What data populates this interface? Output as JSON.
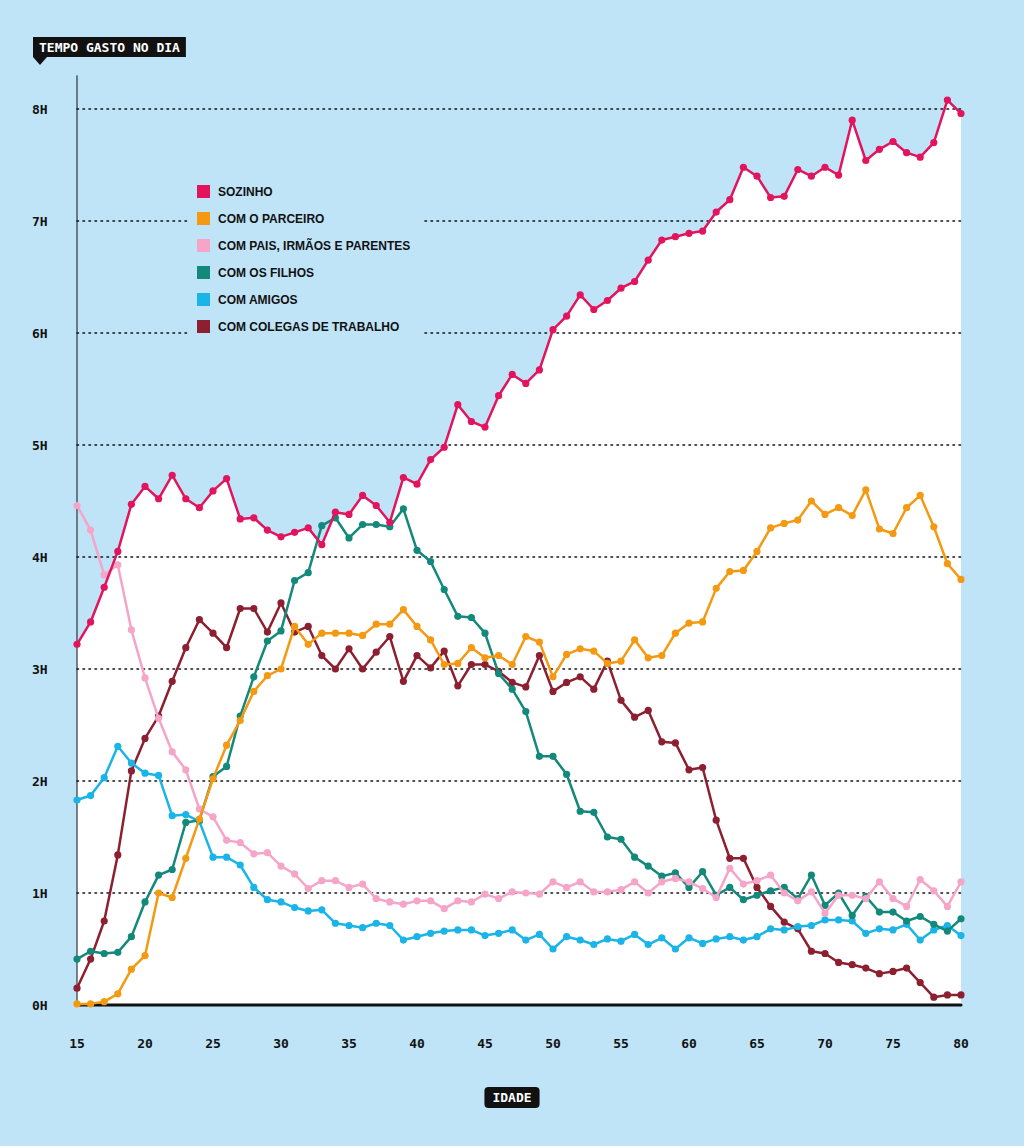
{
  "chart_data": {
    "type": "line",
    "title": "TEMPO GASTO NO DIA",
    "xlabel": "IDADE",
    "x": [
      15,
      16,
      17,
      18,
      19,
      20,
      21,
      22,
      23,
      24,
      25,
      26,
      27,
      28,
      29,
      30,
      31,
      32,
      33,
      34,
      35,
      36,
      37,
      38,
      39,
      40,
      41,
      42,
      43,
      44,
      45,
      46,
      47,
      48,
      49,
      50,
      51,
      52,
      53,
      54,
      55,
      56,
      57,
      58,
      59,
      60,
      61,
      62,
      63,
      64,
      65,
      66,
      67,
      68,
      69,
      70,
      71,
      72,
      73,
      74,
      75,
      76,
      77,
      78,
      79,
      80
    ],
    "xlim": [
      15,
      80
    ],
    "xticks": [
      15,
      20,
      25,
      30,
      35,
      40,
      45,
      50,
      55,
      60,
      65,
      70,
      75,
      80
    ],
    "ylim": [
      0,
      8.3
    ],
    "yticks": [
      {
        "value": 0,
        "label": "0H"
      },
      {
        "value": 1,
        "label": "1H"
      },
      {
        "value": 2,
        "label": "2H"
      },
      {
        "value": 3,
        "label": "3H"
      },
      {
        "value": 4,
        "label": "4H"
      },
      {
        "value": 5,
        "label": "5H"
      },
      {
        "value": 6,
        "label": "6H"
      },
      {
        "value": 7,
        "label": "7H"
      },
      {
        "value": 8,
        "label": "8H"
      }
    ],
    "grid": true,
    "legend": "top-left",
    "marker": "circle",
    "series": [
      {
        "name": "SOZINHO",
        "color": "#e2145d",
        "values": [
          3.22,
          3.42,
          3.73,
          4.05,
          4.47,
          4.63,
          4.52,
          4.73,
          4.52,
          4.44,
          4.59,
          4.7,
          4.34,
          4.35,
          4.24,
          4.18,
          4.22,
          4.26,
          4.11,
          4.4,
          4.38,
          4.55,
          4.46,
          4.31,
          4.71,
          4.65,
          4.87,
          4.98,
          5.36,
          5.21,
          5.16,
          5.44,
          5.63,
          5.55,
          5.67,
          6.03,
          6.15,
          6.34,
          6.21,
          6.29,
          6.4,
          6.46,
          6.65,
          6.83,
          6.86,
          6.89,
          6.91,
          7.08,
          7.19,
          7.48,
          7.4,
          7.21,
          7.22,
          7.46,
          7.4,
          7.48,
          7.41,
          7.9,
          7.54,
          7.64,
          7.71,
          7.61,
          7.57,
          7.7,
          8.08,
          7.96
        ]
      },
      {
        "name": "COM O PARCEIRO",
        "color": "#f39a12",
        "values": [
          0.01,
          0.01,
          0.03,
          0.1,
          0.32,
          0.44,
          1.0,
          0.96,
          1.31,
          1.66,
          2.02,
          2.32,
          2.54,
          2.8,
          2.94,
          3.0,
          3.38,
          3.22,
          3.32,
          3.32,
          3.32,
          3.3,
          3.4,
          3.4,
          3.53,
          3.38,
          3.26,
          3.04,
          3.05,
          3.19,
          3.1,
          3.12,
          3.04,
          3.29,
          3.24,
          2.93,
          3.13,
          3.18,
          3.16,
          3.05,
          3.07,
          3.26,
          3.1,
          3.12,
          3.32,
          3.41,
          3.42,
          3.72,
          3.87,
          3.88,
          4.05,
          4.26,
          4.3,
          4.33,
          4.5,
          4.38,
          4.44,
          4.37,
          4.6,
          4.25,
          4.21,
          4.44,
          4.55,
          4.27,
          3.94,
          3.8
        ]
      },
      {
        "name": "COM PAIS, IRMÃOS E PARENTES",
        "color": "#f4a5c8",
        "values": [
          4.46,
          4.24,
          3.84,
          3.93,
          3.35,
          2.92,
          2.56,
          2.26,
          2.1,
          1.75,
          1.68,
          1.47,
          1.45,
          1.35,
          1.36,
          1.24,
          1.17,
          1.04,
          1.11,
          1.11,
          1.05,
          1.08,
          0.95,
          0.92,
          0.9,
          0.93,
          0.93,
          0.86,
          0.93,
          0.92,
          0.99,
          0.95,
          1.01,
          1.0,
          0.99,
          1.1,
          1.05,
          1.1,
          1.01,
          1.01,
          1.03,
          1.1,
          1.0,
          1.1,
          1.13,
          1.1,
          1.04,
          0.96,
          1.22,
          1.08,
          1.11,
          1.16,
          1.0,
          0.93,
          1.01,
          0.82,
          0.98,
          0.98,
          0.95,
          1.1,
          0.95,
          0.88,
          1.12,
          1.02,
          0.88,
          1.1
        ]
      },
      {
        "name": "COM OS FILHOS",
        "color": "#12897b",
        "values": [
          0.41,
          0.48,
          0.46,
          0.47,
          0.61,
          0.92,
          1.16,
          1.21,
          1.63,
          1.65,
          2.04,
          2.13,
          2.58,
          2.93,
          3.25,
          3.34,
          3.79,
          3.86,
          4.28,
          4.35,
          4.17,
          4.29,
          4.29,
          4.27,
          4.43,
          4.06,
          3.96,
          3.71,
          3.47,
          3.46,
          3.32,
          2.96,
          2.82,
          2.62,
          2.22,
          2.22,
          2.06,
          1.73,
          1.72,
          1.5,
          1.48,
          1.32,
          1.24,
          1.15,
          1.18,
          1.05,
          1.19,
          0.98,
          1.05,
          0.94,
          0.98,
          1.02,
          1.05,
          0.95,
          1.16,
          0.89,
          1.0,
          0.8,
          0.97,
          0.83,
          0.83,
          0.75,
          0.79,
          0.72,
          0.66,
          0.77
        ]
      },
      {
        "name": "COM AMIGOS",
        "color": "#1ab4e8",
        "values": [
          1.83,
          1.87,
          2.03,
          2.31,
          2.16,
          2.07,
          2.05,
          1.69,
          1.7,
          1.64,
          1.32,
          1.32,
          1.25,
          1.05,
          0.94,
          0.92,
          0.87,
          0.84,
          0.85,
          0.73,
          0.71,
          0.69,
          0.73,
          0.71,
          0.58,
          0.61,
          0.64,
          0.66,
          0.67,
          0.67,
          0.62,
          0.64,
          0.67,
          0.58,
          0.63,
          0.5,
          0.61,
          0.58,
          0.54,
          0.59,
          0.57,
          0.63,
          0.54,
          0.6,
          0.5,
          0.6,
          0.55,
          0.59,
          0.61,
          0.58,
          0.61,
          0.68,
          0.67,
          0.7,
          0.71,
          0.76,
          0.76,
          0.75,
          0.64,
          0.68,
          0.67,
          0.72,
          0.58,
          0.67,
          0.71,
          0.62
        ]
      },
      {
        "name": "COM COLEGAS DE TRABALHO",
        "color": "#8c1f30",
        "values": [
          0.15,
          0.41,
          0.75,
          1.34,
          2.09,
          2.38,
          2.58,
          2.89,
          3.19,
          3.44,
          3.32,
          3.19,
          3.54,
          3.54,
          3.33,
          3.59,
          3.33,
          3.38,
          3.12,
          3.0,
          3.18,
          3.0,
          3.15,
          3.29,
          2.89,
          3.12,
          3.01,
          3.16,
          2.85,
          3.04,
          3.04,
          2.98,
          2.88,
          2.84,
          3.12,
          2.8,
          2.88,
          2.93,
          2.82,
          3.07,
          2.72,
          2.57,
          2.63,
          2.35,
          2.34,
          2.1,
          2.12,
          1.65,
          1.31,
          1.31,
          1.05,
          0.88,
          0.74,
          0.68,
          0.48,
          0.46,
          0.38,
          0.36,
          0.33,
          0.28,
          0.3,
          0.33,
          0.2,
          0.07,
          0.09,
          0.09
        ]
      }
    ]
  }
}
